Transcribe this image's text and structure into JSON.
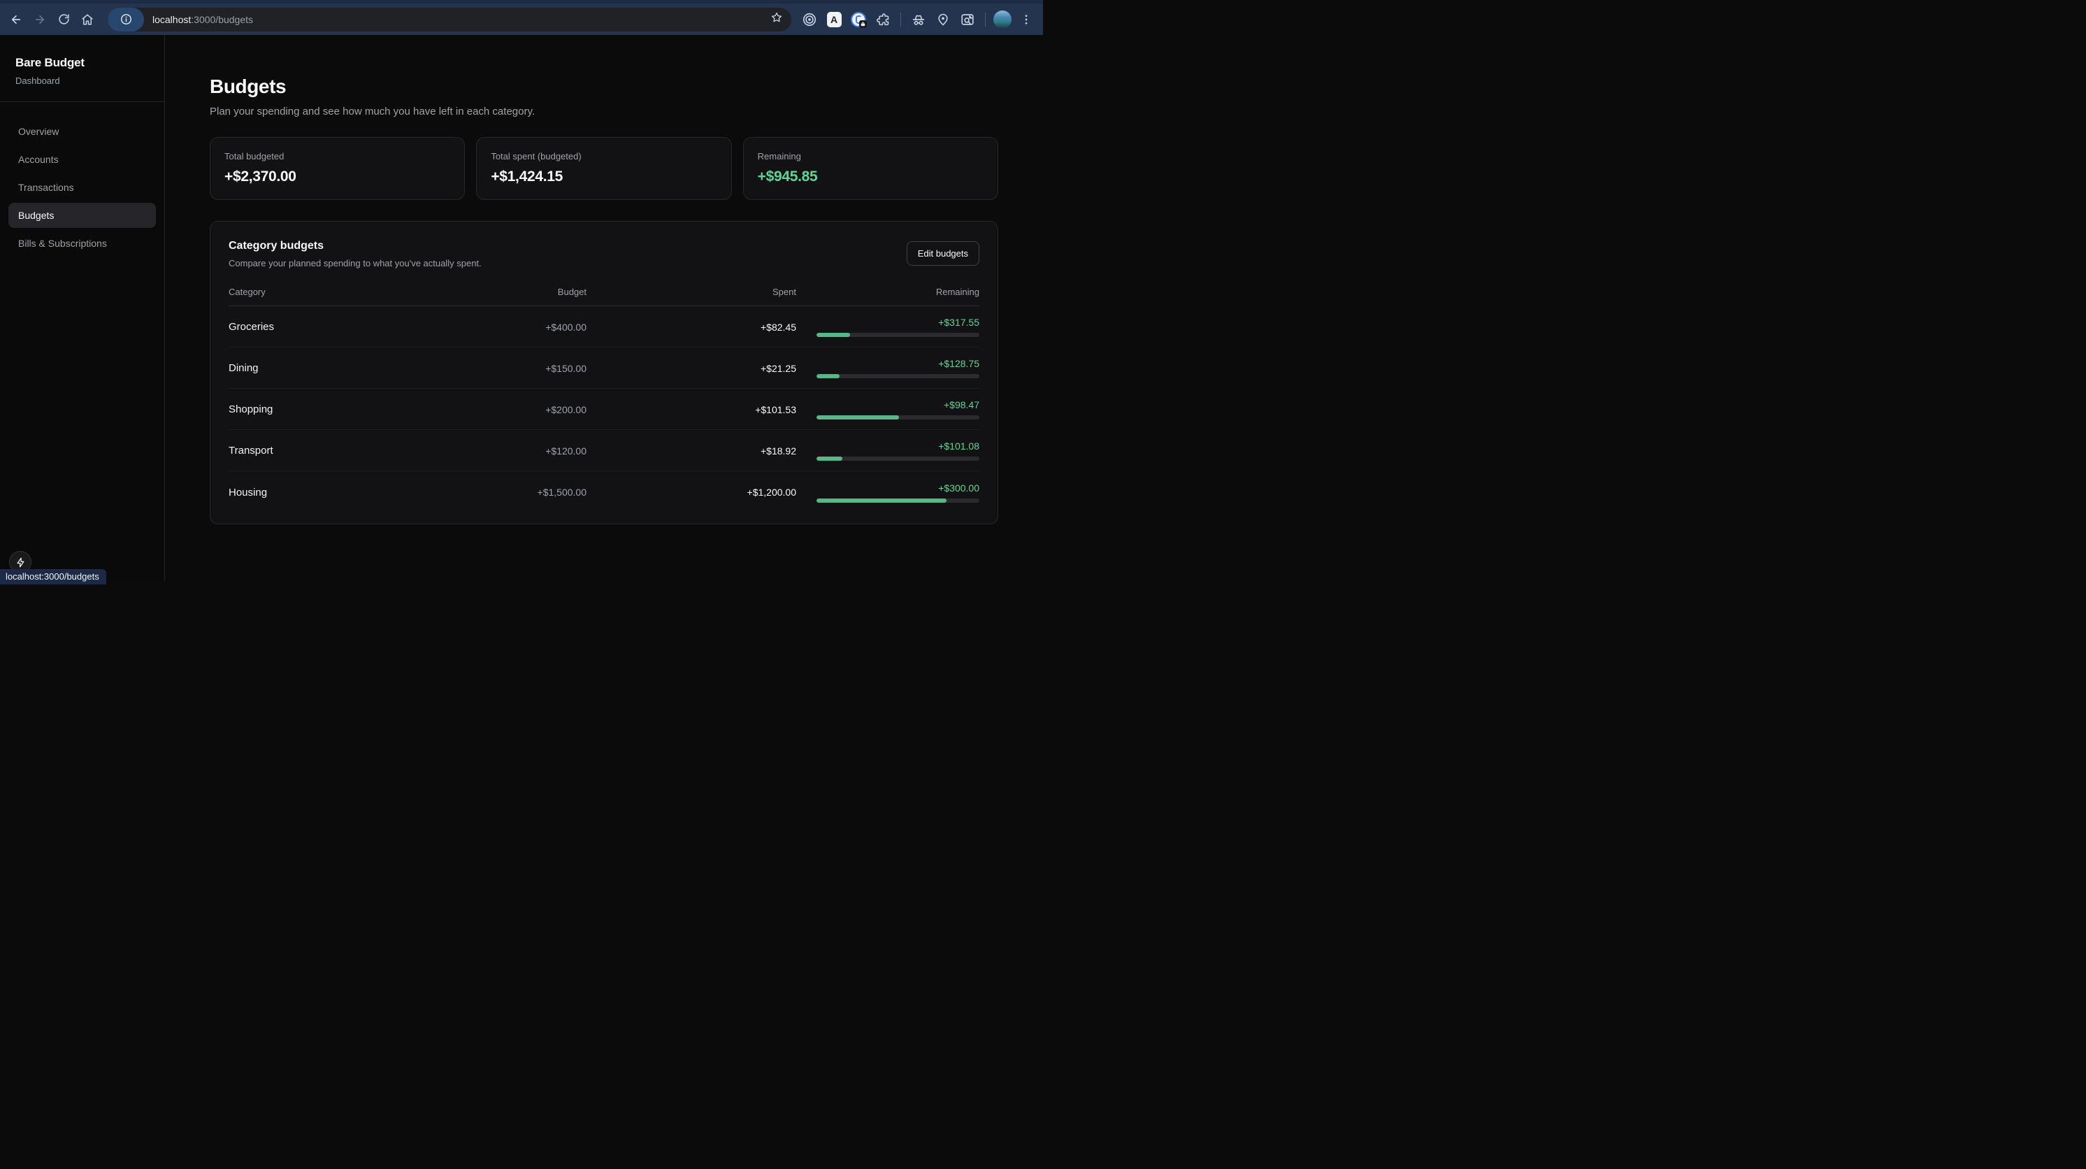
{
  "browser": {
    "url_host": "localhost",
    "url_rest": ":3000/budgets",
    "status_link": "localhost:3000/budgets"
  },
  "sidebar": {
    "app_title": "Bare Budget",
    "app_subtitle": "Dashboard",
    "items": [
      {
        "label": "Overview",
        "active": false
      },
      {
        "label": "Accounts",
        "active": false
      },
      {
        "label": "Transactions",
        "active": false
      },
      {
        "label": "Budgets",
        "active": true
      },
      {
        "label": "Bills & Subscriptions",
        "active": false
      }
    ]
  },
  "page": {
    "title": "Budgets",
    "subtitle": "Plan your spending and see how much you have left in each category."
  },
  "summary_cards": [
    {
      "label": "Total budgeted",
      "value": "+$2,370.00",
      "tone": "default"
    },
    {
      "label": "Total spent (budgeted)",
      "value": "+$1,424.15",
      "tone": "default"
    },
    {
      "label": "Remaining",
      "value": "+$945.85",
      "tone": "positive"
    }
  ],
  "budget_table": {
    "title": "Category budgets",
    "subtitle": "Compare your planned spending to what you've actually spent.",
    "edit_button_label": "Edit budgets",
    "columns": [
      "Category",
      "Budget",
      "Spent",
      "Remaining"
    ],
    "rows": [
      {
        "category": "Groceries",
        "budget": "+$400.00",
        "spent": "+$82.45",
        "remaining": "+$317.55",
        "progress_pct": 20.6
      },
      {
        "category": "Dining",
        "budget": "+$150.00",
        "spent": "+$21.25",
        "remaining": "+$128.75",
        "progress_pct": 14.2
      },
      {
        "category": "Shopping",
        "budget": "+$200.00",
        "spent": "+$101.53",
        "remaining": "+$98.47",
        "progress_pct": 50.8
      },
      {
        "category": "Transport",
        "budget": "+$120.00",
        "spent": "+$18.92",
        "remaining": "+$101.08",
        "progress_pct": 15.8
      },
      {
        "category": "Housing",
        "budget": "+$1,500.00",
        "spent": "+$1,200.00",
        "remaining": "+$300.00",
        "progress_pct": 80
      }
    ]
  },
  "colors": {
    "positive_text": "#5fd695",
    "progress_fill": "#57b786",
    "chrome_bg": "#24334e"
  }
}
